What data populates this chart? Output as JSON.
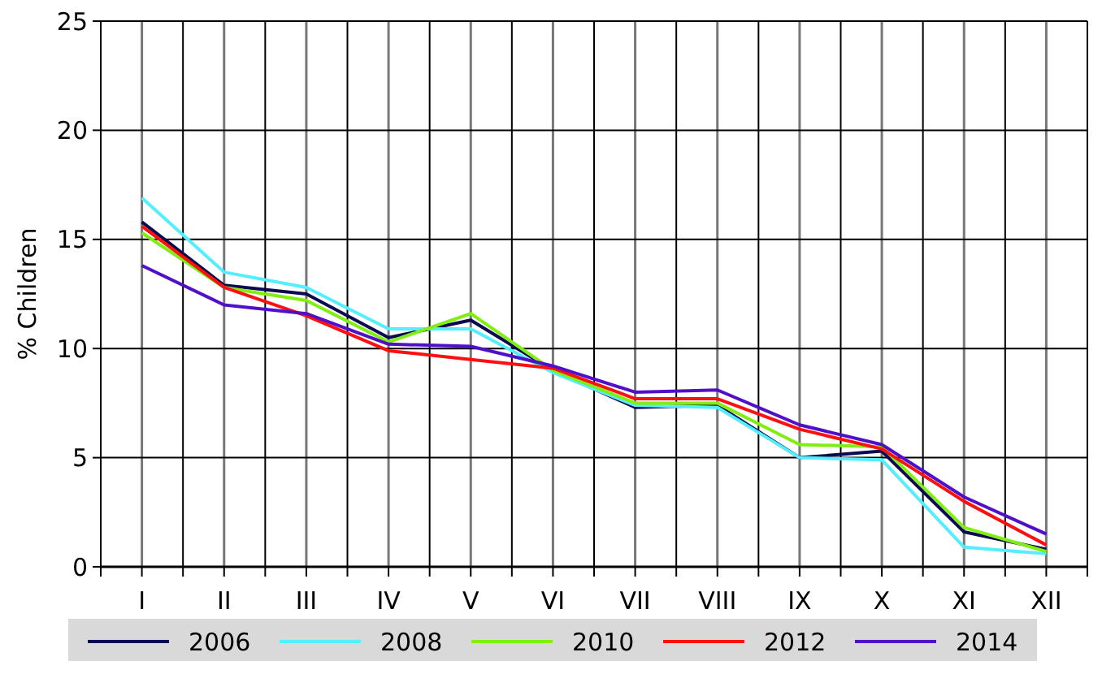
{
  "chart_data": {
    "type": "line",
    "ylabel": "% Children",
    "categories": [
      "I",
      "II",
      "III",
      "IV",
      "V",
      "VI",
      "VII",
      "VIII",
      "IX",
      "X",
      "XI",
      "XII"
    ],
    "ylim": [
      0,
      25
    ],
    "yticks": [
      0,
      5,
      10,
      15,
      20,
      25
    ],
    "grid": true,
    "legend": "bottom",
    "marker": "none",
    "series": [
      {
        "name": "2006",
        "color": "#0a0a50",
        "values": [
          15.8,
          12.9,
          12.5,
          10.5,
          11.3,
          9.0,
          7.3,
          7.4,
          5.0,
          5.3,
          1.6,
          0.8
        ]
      },
      {
        "name": "2008",
        "color": "#55eeff",
        "values": [
          16.9,
          13.5,
          12.8,
          10.9,
          10.9,
          8.9,
          7.4,
          7.3,
          5.0,
          4.9,
          0.9,
          0.6
        ]
      },
      {
        "name": "2010",
        "color": "#80ee10",
        "values": [
          15.3,
          12.8,
          12.2,
          10.3,
          11.6,
          9.0,
          7.5,
          7.5,
          5.6,
          5.5,
          1.8,
          0.7
        ]
      },
      {
        "name": "2012",
        "color": "#ff1010",
        "values": [
          15.6,
          12.8,
          11.5,
          9.9,
          9.5,
          9.1,
          7.7,
          7.7,
          6.3,
          5.4,
          3.0,
          1.0
        ]
      },
      {
        "name": "2014",
        "color": "#5010c8",
        "values": [
          13.8,
          12.0,
          11.6,
          10.2,
          10.1,
          9.2,
          8.0,
          8.1,
          6.5,
          5.6,
          3.2,
          1.5
        ]
      }
    ]
  }
}
